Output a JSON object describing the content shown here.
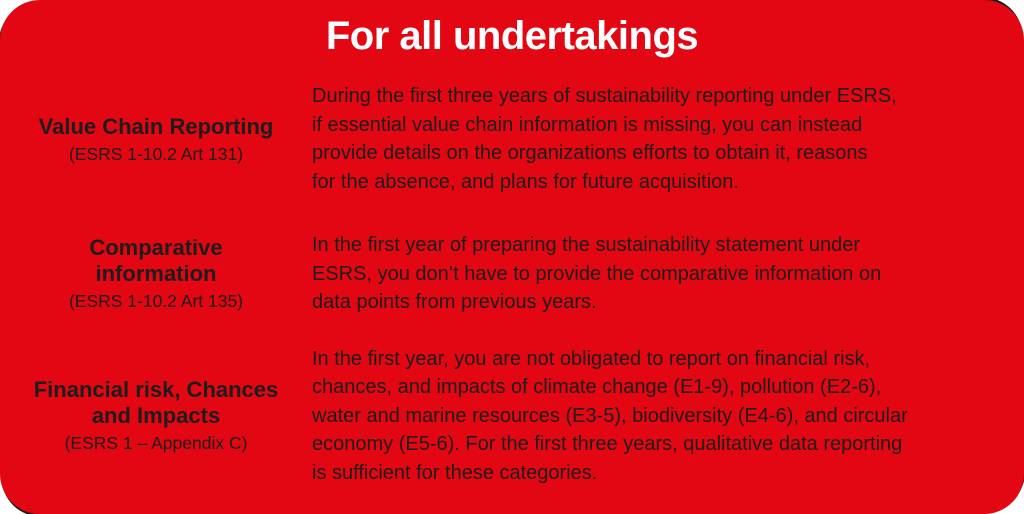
{
  "colors": {
    "card-background": "#e30613",
    "card-backing": "#1d1d1b",
    "title-text": "#ffffff",
    "body-text": "#1d1d1b"
  },
  "card": {
    "title": "For all undertakings",
    "rows": [
      {
        "heading": "Value Chain Reporting",
        "reference": "(ESRS 1-10.2 Art 131)",
        "description": "During the first three years of sustainability reporting under ESRS,\nif essential value chain information is missing, you can instead\nprovide details on the organizations efforts to obtain it, reasons\nfor the absence, and plans for future acquisition."
      },
      {
        "heading": "Comparative information",
        "reference": "(ESRS 1-10.2 Art 135)",
        "description": "In the first year of preparing the sustainability statement under\nESRS, you don’t have to provide the comparative information on\ndata points from previous years."
      },
      {
        "heading": "Financial risk, Chances and Impacts",
        "reference": "(ESRS 1 – Appendix C)",
        "description": "In the first year, you are not obligated to report on financial risk,\nchances, and impacts of climate change (E1-9), pollution (E2-6),\nwater and marine resources (E3-5), biodiversity (E4-6), and circular\neconomy (E5-6). For the first three years, qualitative data reporting\nis sufficient for these categories."
      }
    ]
  }
}
